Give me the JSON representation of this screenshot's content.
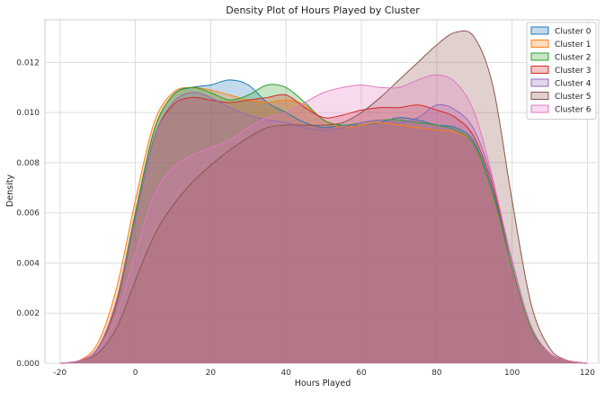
{
  "chart_data": {
    "type": "area",
    "title": "Density Plot of Hours Played by Cluster",
    "xlabel": "Hours Played",
    "ylabel": "Density",
    "xlim": [
      -24,
      123
    ],
    "ylim": [
      0,
      0.0137
    ],
    "xticks": [
      -20,
      0,
      20,
      40,
      60,
      80,
      100,
      120
    ],
    "yticks": [
      0,
      0.002,
      0.004,
      0.006,
      0.008,
      0.01,
      0.012
    ],
    "ytick_labels": [
      "0.000",
      "0.002",
      "0.004",
      "0.006",
      "0.008",
      "0.010",
      "0.012"
    ],
    "grid": true,
    "legend_position": "top-right",
    "x": [
      -20,
      -15,
      -10,
      -5,
      0,
      5,
      10,
      15,
      20,
      25,
      30,
      35,
      40,
      45,
      50,
      55,
      60,
      65,
      70,
      75,
      80,
      85,
      90,
      95,
      100,
      105,
      110,
      115,
      120
    ],
    "series": [
      {
        "name": "Cluster 0",
        "color": "#1f77b4",
        "values": [
          0,
          0.0001,
          0.0006,
          0.0025,
          0.006,
          0.0093,
          0.0107,
          0.011,
          0.0111,
          0.0113,
          0.0111,
          0.0104,
          0.01,
          0.0096,
          0.0094,
          0.0095,
          0.0095,
          0.0096,
          0.0098,
          0.0097,
          0.0095,
          0.0094,
          0.0088,
          0.0068,
          0.004,
          0.0015,
          0.0004,
          0.0001,
          0
        ]
      },
      {
        "name": "Cluster 1",
        "color": "#ff7f0e",
        "values": [
          0,
          0.0001,
          0.0008,
          0.003,
          0.0065,
          0.0096,
          0.0108,
          0.011,
          0.0109,
          0.0107,
          0.0105,
          0.0104,
          0.0105,
          0.0103,
          0.0097,
          0.0094,
          0.0095,
          0.0096,
          0.0095,
          0.0094,
          0.0093,
          0.0092,
          0.0087,
          0.0067,
          0.0038,
          0.0014,
          0.0004,
          0.0001,
          0
        ]
      },
      {
        "name": "Cluster 2",
        "color": "#2ca02c",
        "values": [
          0,
          0.0001,
          0.0006,
          0.0025,
          0.006,
          0.0093,
          0.0107,
          0.011,
          0.0108,
          0.0105,
          0.0107,
          0.0111,
          0.011,
          0.0104,
          0.0097,
          0.0095,
          0.0096,
          0.0097,
          0.0097,
          0.0096,
          0.0095,
          0.0093,
          0.0087,
          0.0067,
          0.0038,
          0.0014,
          0.0004,
          0.0001,
          0
        ]
      },
      {
        "name": "Cluster 3",
        "color": "#d62728",
        "values": [
          0,
          0.0001,
          0.0006,
          0.0024,
          0.0058,
          0.009,
          0.0103,
          0.0106,
          0.0105,
          0.0104,
          0.0105,
          0.0106,
          0.0107,
          0.0102,
          0.0098,
          0.0099,
          0.0101,
          0.0102,
          0.0102,
          0.0103,
          0.0101,
          0.0098,
          0.009,
          0.007,
          0.004,
          0.0015,
          0.0004,
          0.0001,
          0
        ]
      },
      {
        "name": "Cluster 4",
        "color": "#9467bd",
        "values": [
          0,
          0.0001,
          0.0006,
          0.0025,
          0.0058,
          0.009,
          0.0104,
          0.0108,
          0.0106,
          0.0102,
          0.0099,
          0.0097,
          0.0096,
          0.0094,
          0.0093,
          0.0094,
          0.0096,
          0.0097,
          0.0096,
          0.0098,
          0.0103,
          0.0101,
          0.0093,
          0.0072,
          0.0041,
          0.0015,
          0.0004,
          0.0001,
          0
        ]
      },
      {
        "name": "Cluster 5",
        "color": "#8c564b",
        "values": [
          0,
          0.0001,
          0.0004,
          0.0014,
          0.0033,
          0.0051,
          0.0063,
          0.0072,
          0.0079,
          0.0085,
          0.009,
          0.0094,
          0.0095,
          0.0095,
          0.0095,
          0.0096,
          0.01,
          0.0106,
          0.0113,
          0.012,
          0.0127,
          0.0132,
          0.013,
          0.011,
          0.0065,
          0.0024,
          0.0006,
          0.0001,
          0
        ]
      },
      {
        "name": "Cluster 6",
        "color": "#e377c2",
        "values": [
          0,
          0.0001,
          0.0005,
          0.0019,
          0.0044,
          0.0067,
          0.0078,
          0.0083,
          0.0086,
          0.0089,
          0.0094,
          0.0098,
          0.01,
          0.0104,
          0.0108,
          0.011,
          0.0111,
          0.011,
          0.011,
          0.0113,
          0.0115,
          0.0112,
          0.01,
          0.0073,
          0.004,
          0.0015,
          0.0004,
          0.0001,
          0
        ]
      }
    ]
  }
}
